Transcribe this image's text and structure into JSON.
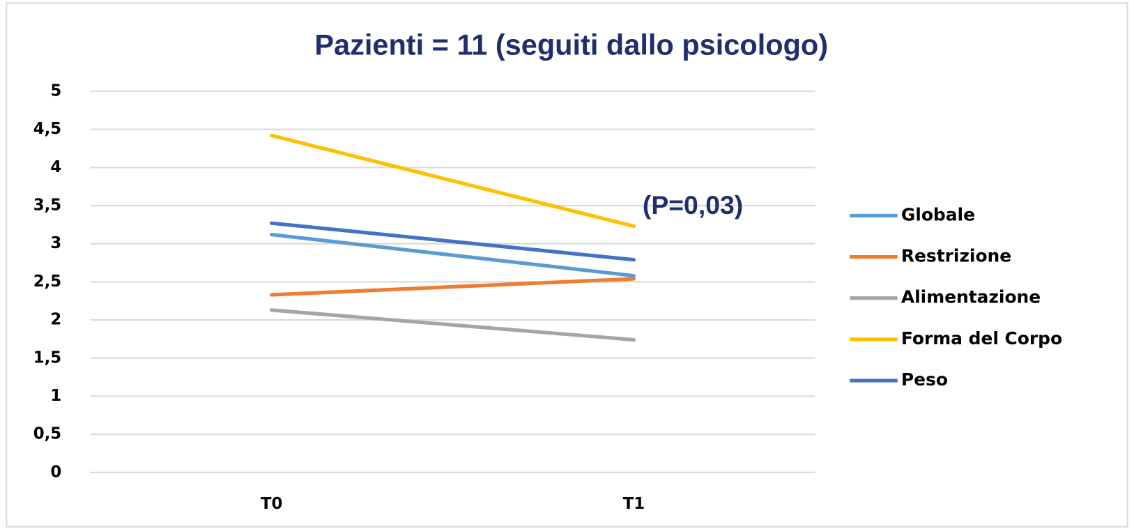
{
  "chart_data": {
    "type": "line",
    "title": "Pazienti = 11 (seguiti dallo psicologo)",
    "annotation": "(P=0,03)",
    "categories": [
      "T0",
      "T1"
    ],
    "series": [
      {
        "name": "Globale",
        "color": "#5b9bd5",
        "values": [
          3.12,
          2.58
        ]
      },
      {
        "name": "Restrizione",
        "color": "#ed7d31",
        "values": [
          2.33,
          2.54
        ]
      },
      {
        "name": "Alimentazione",
        "color": "#a5a5a5",
        "values": [
          2.13,
          1.74
        ]
      },
      {
        "name": "Forma del Corpo",
        "color": "#ffc000",
        "values": [
          4.42,
          3.23
        ]
      },
      {
        "name": "Peso",
        "color": "#4472c4",
        "values": [
          3.27,
          2.79
        ]
      }
    ],
    "ylim": [
      0,
      5
    ],
    "yticks": [
      0,
      {
        "value": 0.5,
        "label": "0,5"
      },
      1,
      {
        "value": 1.5,
        "label": "1,5"
      },
      2,
      {
        "value": 2.5,
        "label": "2,5"
      },
      3,
      {
        "value": 3.5,
        "label": "3,5"
      },
      4,
      {
        "value": 4.5,
        "label": "4,5"
      },
      5
    ],
    "grid": true,
    "legend": "right"
  }
}
